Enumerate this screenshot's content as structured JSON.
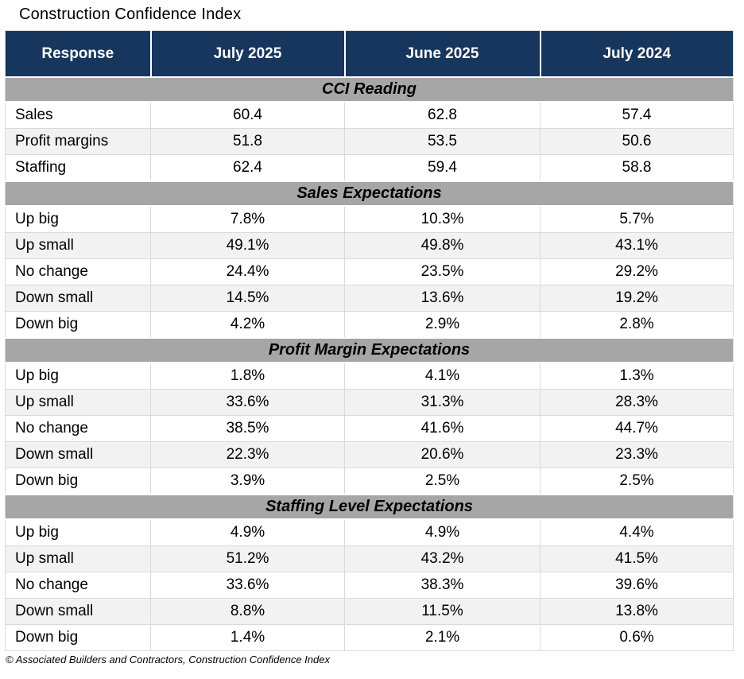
{
  "title": "Construction Confidence Index",
  "header": {
    "columns": [
      "Response",
      "July 2025",
      "June 2025",
      "July 2024"
    ]
  },
  "sections": [
    {
      "label": "CCI Reading",
      "rows": [
        [
          "Sales",
          "60.4",
          "62.8",
          "57.4"
        ],
        [
          "Profit margins",
          "51.8",
          "53.5",
          "50.6"
        ],
        [
          "Staffing",
          "62.4",
          "59.4",
          "58.8"
        ]
      ]
    },
    {
      "label": "Sales Expectations",
      "rows": [
        [
          "Up big",
          "7.8%",
          "10.3%",
          "5.7%"
        ],
        [
          "Up small",
          "49.1%",
          "49.8%",
          "43.1%"
        ],
        [
          "No change",
          "24.4%",
          "23.5%",
          "29.2%"
        ],
        [
          "Down small",
          "14.5%",
          "13.6%",
          "19.2%"
        ],
        [
          "Down big",
          "4.2%",
          "2.9%",
          "2.8%"
        ]
      ]
    },
    {
      "label": "Profit Margin Expectations",
      "rows": [
        [
          "Up big",
          "1.8%",
          "4.1%",
          "1.3%"
        ],
        [
          "Up small",
          "33.6%",
          "31.3%",
          "28.3%"
        ],
        [
          "No change",
          "38.5%",
          "41.6%",
          "44.7%"
        ],
        [
          "Down small",
          "22.3%",
          "20.6%",
          "23.3%"
        ],
        [
          "Down big",
          "3.9%",
          "2.5%",
          "2.5%"
        ]
      ]
    },
    {
      "label": "Staffing Level Expectations",
      "rows": [
        [
          "Up big",
          "4.9%",
          "4.9%",
          "4.4%"
        ],
        [
          "Up small",
          "51.2%",
          "43.2%",
          "41.5%"
        ],
        [
          "No change",
          "33.6%",
          "38.3%",
          "39.6%"
        ],
        [
          "Down small",
          "8.8%",
          "11.5%",
          "13.8%"
        ],
        [
          "Down big",
          "1.4%",
          "2.1%",
          "0.6%"
        ]
      ]
    }
  ],
  "footer": "© Associated Builders and Contractors, Construction Confidence Index",
  "colors": {
    "header_bg": "#17365D",
    "header_text": "#FFFFFF",
    "section_band_bg": "#A6A6A6",
    "row_alt_bg": "#F2F2F2",
    "row_bg": "#FFFFFF",
    "grid_border": "#D9D9D9",
    "text": "#000000"
  },
  "chart_data": {
    "type": "table",
    "title": "Construction Confidence Index",
    "columns": [
      "Response",
      "July 2025",
      "June 2025",
      "July 2024"
    ],
    "sections": [
      {
        "section": "CCI Reading",
        "rows": [
          {
            "response": "Sales",
            "july_2025": 60.4,
            "june_2025": 62.8,
            "july_2024": 57.4
          },
          {
            "response": "Profit margins",
            "july_2025": 51.8,
            "june_2025": 53.5,
            "july_2024": 50.6
          },
          {
            "response": "Staffing",
            "july_2025": 62.4,
            "june_2025": 59.4,
            "july_2024": 58.8
          }
        ]
      },
      {
        "section": "Sales Expectations",
        "unit": "%",
        "rows": [
          {
            "response": "Up big",
            "july_2025": 7.8,
            "june_2025": 10.3,
            "july_2024": 5.7
          },
          {
            "response": "Up small",
            "july_2025": 49.1,
            "june_2025": 49.8,
            "july_2024": 43.1
          },
          {
            "response": "No change",
            "july_2025": 24.4,
            "june_2025": 23.5,
            "july_2024": 29.2
          },
          {
            "response": "Down small",
            "july_2025": 14.5,
            "june_2025": 13.6,
            "july_2024": 19.2
          },
          {
            "response": "Down big",
            "july_2025": 4.2,
            "june_2025": 2.9,
            "july_2024": 2.8
          }
        ]
      },
      {
        "section": "Profit Margin Expectations",
        "unit": "%",
        "rows": [
          {
            "response": "Up big",
            "july_2025": 1.8,
            "june_2025": 4.1,
            "july_2024": 1.3
          },
          {
            "response": "Up small",
            "july_2025": 33.6,
            "june_2025": 31.3,
            "july_2024": 28.3
          },
          {
            "response": "No change",
            "july_2025": 38.5,
            "june_2025": 41.6,
            "july_2024": 44.7
          },
          {
            "response": "Down small",
            "july_2025": 22.3,
            "june_2025": 20.6,
            "july_2024": 23.3
          },
          {
            "response": "Down big",
            "july_2025": 3.9,
            "june_2025": 2.5,
            "july_2024": 2.5
          }
        ]
      },
      {
        "section": "Staffing Level Expectations",
        "unit": "%",
        "rows": [
          {
            "response": "Up big",
            "july_2025": 4.9,
            "june_2025": 4.9,
            "july_2024": 4.4
          },
          {
            "response": "Up small",
            "july_2025": 51.2,
            "june_2025": 43.2,
            "july_2024": 41.5
          },
          {
            "response": "No change",
            "july_2025": 33.6,
            "june_2025": 38.3,
            "july_2024": 39.6
          },
          {
            "response": "Down small",
            "july_2025": 8.8,
            "june_2025": 11.5,
            "july_2024": 13.8
          },
          {
            "response": "Down big",
            "july_2025": 1.4,
            "june_2025": 2.1,
            "july_2024": 0.6
          }
        ]
      }
    ],
    "source_note": "© Associated Builders and Contractors, Construction Confidence Index"
  }
}
